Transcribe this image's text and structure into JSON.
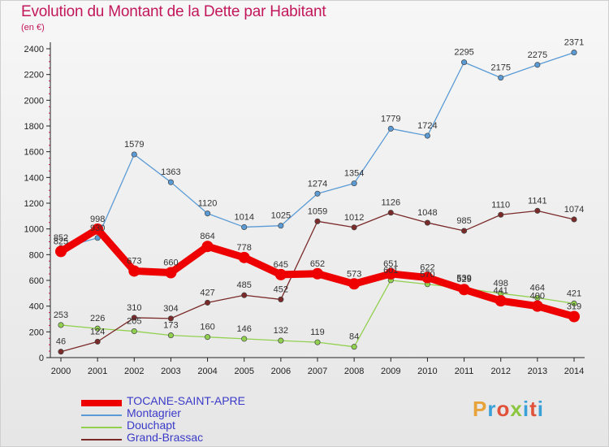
{
  "header": {
    "title": "Evolution du Montant de la Dette par Habitant",
    "subtitle": "(en €)"
  },
  "brand": {
    "name": "Proxiti",
    "colors": [
      "#e8a23a",
      "#3aa0d8",
      "#e0523a",
      "#8cc63f",
      "#3aa0d8",
      "#e0523a",
      "#3aa0d8"
    ]
  },
  "chart_data": {
    "type": "line",
    "title": "Evolution du Montant de la Dette par Habitant",
    "subtitle": "(en €)",
    "xlabel": "",
    "ylabel": "",
    "x": [
      2000,
      2001,
      2002,
      2003,
      2004,
      2005,
      2006,
      2007,
      2008,
      2009,
      2010,
      2011,
      2012,
      2013,
      2014
    ],
    "ylim": [
      0,
      2400
    ],
    "yticks": [
      0,
      200,
      400,
      600,
      800,
      1000,
      1200,
      1400,
      1600,
      1800,
      2000,
      2200,
      2400
    ],
    "grid": false,
    "legend_position": "bottom-left",
    "series": [
      {
        "name": "TOCANE-SAINT-APRE",
        "color": "#ee0000",
        "values": [
          825,
          998,
          673,
          660,
          864,
          778,
          645,
          652,
          573,
          651,
          622,
          529,
          441,
          400,
          319
        ],
        "labels": [
          "825",
          "998",
          "673",
          "660",
          "864",
          "778",
          "645",
          "652",
          "573",
          "651",
          "622",
          "529",
          "441",
          "400",
          "319"
        ]
      },
      {
        "name": "Montagrier",
        "color": "#5b9bd5",
        "values": [
          852,
          930,
          1579,
          1363,
          1120,
          1014,
          1025,
          1274,
          1354,
          1779,
          1724,
          2295,
          2175,
          2275,
          2371
        ],
        "labels": [
          "852",
          "930",
          "1579",
          "1363",
          "1120",
          "1014",
          "1025",
          "1274",
          "1354",
          "1779",
          "1724",
          "2295",
          "2175",
          "2275",
          "2371"
        ]
      },
      {
        "name": "Douchapt",
        "color": "#92d050",
        "values": [
          253,
          226,
          205,
          173,
          160,
          146,
          132,
          119,
          84,
          601,
          570,
          539,
          498,
          464,
          421
        ],
        "labels": [
          "253",
          "226",
          "205",
          "173",
          "160",
          "146",
          "132",
          "119",
          "84",
          "601",
          "570",
          "539",
          "498",
          "464",
          "421"
        ]
      },
      {
        "name": "Grand-Brassac",
        "color": "#7b2a2a",
        "values": [
          46,
          124,
          310,
          304,
          427,
          485,
          452,
          1059,
          1012,
          1126,
          1048,
          985,
          1110,
          1141,
          1074
        ],
        "labels": [
          "46",
          "124",
          "310",
          "304",
          "427",
          "485",
          "452",
          "1059",
          "1012",
          "1126",
          "1048",
          "985",
          "1110",
          "1141",
          "1074"
        ]
      }
    ]
  }
}
